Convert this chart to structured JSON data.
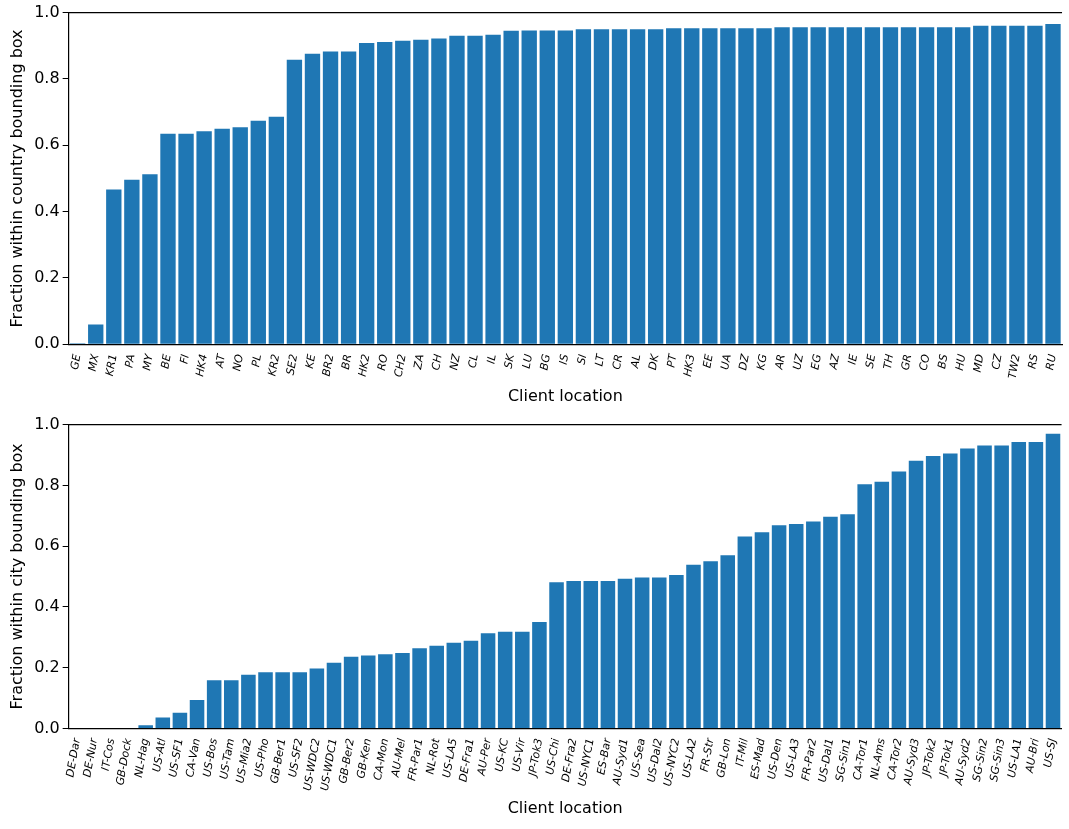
{
  "chart_data": [
    {
      "type": "bar",
      "xlabel": "Client location",
      "ylabel": "Fraction within country bounding box",
      "color": "#1f77b4",
      "grid": false,
      "legend": false,
      "categories": [
        "GE",
        "MX",
        "KR1",
        "PA",
        "MY",
        "BE",
        "FI",
        "HK4",
        "AT",
        "NO",
        "PL",
        "KR2",
        "SE2",
        "KE",
        "BR2",
        "BR",
        "HK2",
        "RO",
        "CH2",
        "ZA",
        "CH",
        "NZ",
        "CL",
        "IL",
        "SK",
        "LU",
        "BG",
        "IS",
        "SI",
        "LT",
        "CR",
        "AL",
        "DK",
        "PT",
        "HK3",
        "EE",
        "UA",
        "DZ",
        "KG",
        "AR",
        "UZ",
        "EG",
        "AZ",
        "IE",
        "SE",
        "TH",
        "GR",
        "CO",
        "BS",
        "HU",
        "MD",
        "CZ",
        "TW2",
        "RS",
        "RU"
      ],
      "values": [
        0.003,
        0.06,
        0.467,
        0.496,
        0.513,
        0.635,
        0.635,
        0.642,
        0.65,
        0.654,
        0.674,
        0.686,
        0.858,
        0.876,
        0.883,
        0.883,
        0.908,
        0.911,
        0.915,
        0.918,
        0.922,
        0.93,
        0.93,
        0.933,
        0.945,
        0.946,
        0.946,
        0.946,
        0.95,
        0.95,
        0.95,
        0.95,
        0.95,
        0.953,
        0.953,
        0.953,
        0.953,
        0.953,
        0.953,
        0.956,
        0.956,
        0.956,
        0.956,
        0.956,
        0.956,
        0.956,
        0.956,
        0.956,
        0.956,
        0.956,
        0.96,
        0.96,
        0.96,
        0.96,
        0.966
      ],
      "ylim": [
        0,
        1
      ],
      "yticks": [
        {
          "value": 0,
          "label": "0.0"
        },
        {
          "value": 0.2,
          "label": "0.2"
        },
        {
          "value": 0.4,
          "label": "0.4"
        },
        {
          "value": 0.6,
          "label": "0.6"
        },
        {
          "value": 0.8,
          "label": "0.8"
        },
        {
          "value": 1,
          "label": "1.0"
        }
      ]
    },
    {
      "type": "bar",
      "xlabel": "Client location",
      "ylabel": "Fraction within city bounding box",
      "color": "#1f77b4",
      "grid": false,
      "legend": false,
      "categories": [
        "DE-Dar",
        "DE-Nur",
        "IT-Cos",
        "GB-Dock",
        "NL-Hag",
        "US-Atl",
        "US-SF1",
        "CA-Van",
        "US-Bos",
        "US-Tam",
        "US-Mia2",
        "US-Pho",
        "GB-Ber1",
        "US-SF2",
        "US-WDC2",
        "US-WDC1",
        "GB-Ber2",
        "GB-Ken",
        "CA-Mon",
        "AU-Mel",
        "FR-Par1",
        "NL-Rot",
        "US-LA5",
        "DE-Fra1",
        "AU-Per",
        "US-KC",
        "US-Vir",
        "JP-Tok3",
        "US-Chi",
        "DE-Fra2",
        "US-NYC1",
        "ES-Bar",
        "AU-Syd1",
        "US-Sea",
        "US-Dal2",
        "US-NYC2",
        "US-LA2",
        "FR-Str",
        "GB-Lon",
        "IT-Mil",
        "ES-Mad",
        "US-Den",
        "US-LA3",
        "FR-Par2",
        "US-Dal1",
        "SG-Sin1",
        "CA-Tor1",
        "NL-Ams",
        "CA-Tor2",
        "AU-Syd3",
        "JP-Tok2",
        "JP-Tok1",
        "AU-Syd2",
        "SG-Sin2",
        "SG-Sin3",
        "US-LA1",
        "AU-Bri",
        "US-SJ"
      ],
      "values": [
        0,
        0,
        0,
        0,
        0.011,
        0.036,
        0.052,
        0.094,
        0.159,
        0.159,
        0.177,
        0.185,
        0.185,
        0.185,
        0.197,
        0.216,
        0.236,
        0.24,
        0.244,
        0.248,
        0.264,
        0.272,
        0.282,
        0.289,
        0.313,
        0.318,
        0.318,
        0.35,
        0.481,
        0.485,
        0.485,
        0.485,
        0.493,
        0.497,
        0.497,
        0.505,
        0.539,
        0.55,
        0.57,
        0.632,
        0.646,
        0.669,
        0.673,
        0.681,
        0.697,
        0.705,
        0.804,
        0.812,
        0.846,
        0.881,
        0.897,
        0.905,
        0.921,
        0.931,
        0.931,
        0.943,
        0.943,
        0.97
      ],
      "ylim": [
        0,
        1
      ],
      "yticks": [
        {
          "value": 0,
          "label": "0.0"
        },
        {
          "value": 0.2,
          "label": "0.2"
        },
        {
          "value": 0.4,
          "label": "0.4"
        },
        {
          "value": 0.6,
          "label": "0.6"
        },
        {
          "value": 0.8,
          "label": "0.8"
        },
        {
          "value": 1,
          "label": "1.0"
        }
      ]
    }
  ]
}
